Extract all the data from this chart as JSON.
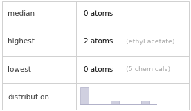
{
  "rows": [
    {
      "label": "median",
      "value": "0 atoms",
      "note": ""
    },
    {
      "label": "highest",
      "value": "2 atoms",
      "note": "(ethyl acetate)"
    },
    {
      "label": "lowest",
      "value": "0 atoms",
      "note": "(5 chemicals)"
    },
    {
      "label": "distribution",
      "value": "",
      "note": ""
    }
  ],
  "bar_values": [
    5,
    0,
    1,
    0,
    1
  ],
  "bar_color": "#d0d0e0",
  "bar_edge_color": "#b0b0c8",
  "background_color": "#ffffff",
  "border_color": "#d0d0d0",
  "label_color": "#404040",
  "value_color": "#111111",
  "note_color": "#aaaaaa",
  "label_fontsize": 7.5,
  "value_fontsize": 7.5,
  "note_fontsize": 6.8,
  "col_split": 0.4,
  "figwidth": 2.76,
  "figheight": 1.61,
  "dpi": 100
}
